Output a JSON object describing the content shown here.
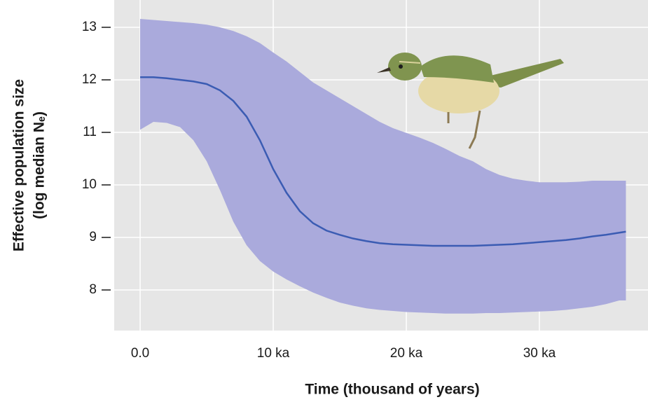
{
  "chart_data": {
    "type": "area-band-line",
    "x_label": "Time  (thousand of years)",
    "y_label": [
      "Effective population size",
      "(log median Nₑ)"
    ],
    "x": [
      0,
      1,
      2,
      3,
      4,
      5,
      6,
      7,
      8,
      9,
      10,
      11,
      12,
      13,
      14,
      15,
      16,
      17,
      18,
      19,
      20,
      21,
      22,
      23,
      24,
      25,
      26,
      27,
      28,
      29,
      30,
      31,
      32,
      33,
      34,
      35,
      36,
      36.5
    ],
    "values": [
      12.05,
      12.05,
      12.03,
      12.0,
      11.97,
      11.92,
      11.8,
      11.6,
      11.3,
      10.85,
      10.3,
      9.85,
      9.5,
      9.27,
      9.13,
      9.05,
      8.98,
      8.93,
      8.89,
      8.87,
      8.86,
      8.85,
      8.84,
      8.84,
      8.84,
      8.84,
      8.85,
      8.86,
      8.87,
      8.89,
      8.91,
      8.93,
      8.95,
      8.98,
      9.02,
      9.05,
      9.09,
      9.11
    ],
    "band_upper": [
      13.16,
      13.14,
      13.12,
      13.1,
      13.08,
      13.05,
      13.0,
      12.93,
      12.83,
      12.7,
      12.52,
      12.35,
      12.15,
      11.95,
      11.8,
      11.65,
      11.5,
      11.35,
      11.2,
      11.08,
      10.99,
      10.9,
      10.8,
      10.68,
      10.55,
      10.45,
      10.3,
      10.19,
      10.12,
      10.08,
      10.05,
      10.05,
      10.05,
      10.06,
      10.08,
      10.08,
      10.08,
      10.08
    ],
    "band_lower": [
      11.05,
      11.2,
      11.18,
      11.1,
      10.85,
      10.45,
      9.9,
      9.3,
      8.85,
      8.55,
      8.35,
      8.2,
      8.07,
      7.95,
      7.85,
      7.76,
      7.7,
      7.65,
      7.62,
      7.6,
      7.58,
      7.57,
      7.56,
      7.55,
      7.55,
      7.55,
      7.56,
      7.56,
      7.57,
      7.58,
      7.59,
      7.6,
      7.62,
      7.65,
      7.68,
      7.73,
      7.8,
      7.8
    ],
    "line_color": "#3b5cb3",
    "band_color": "#aaaadc",
    "xlim": [
      -1.95,
      38.16
    ],
    "ylim": [
      7.227,
      13.52
    ],
    "xticks": [
      {
        "value": 0,
        "label": "0.0"
      },
      {
        "value": 10,
        "label": "10 ka"
      },
      {
        "value": 20,
        "label": "20 ka"
      },
      {
        "value": 30,
        "label": "30 ka"
      }
    ],
    "yticks": [
      8,
      9,
      10,
      11,
      12,
      13
    ],
    "grid": true
  }
}
